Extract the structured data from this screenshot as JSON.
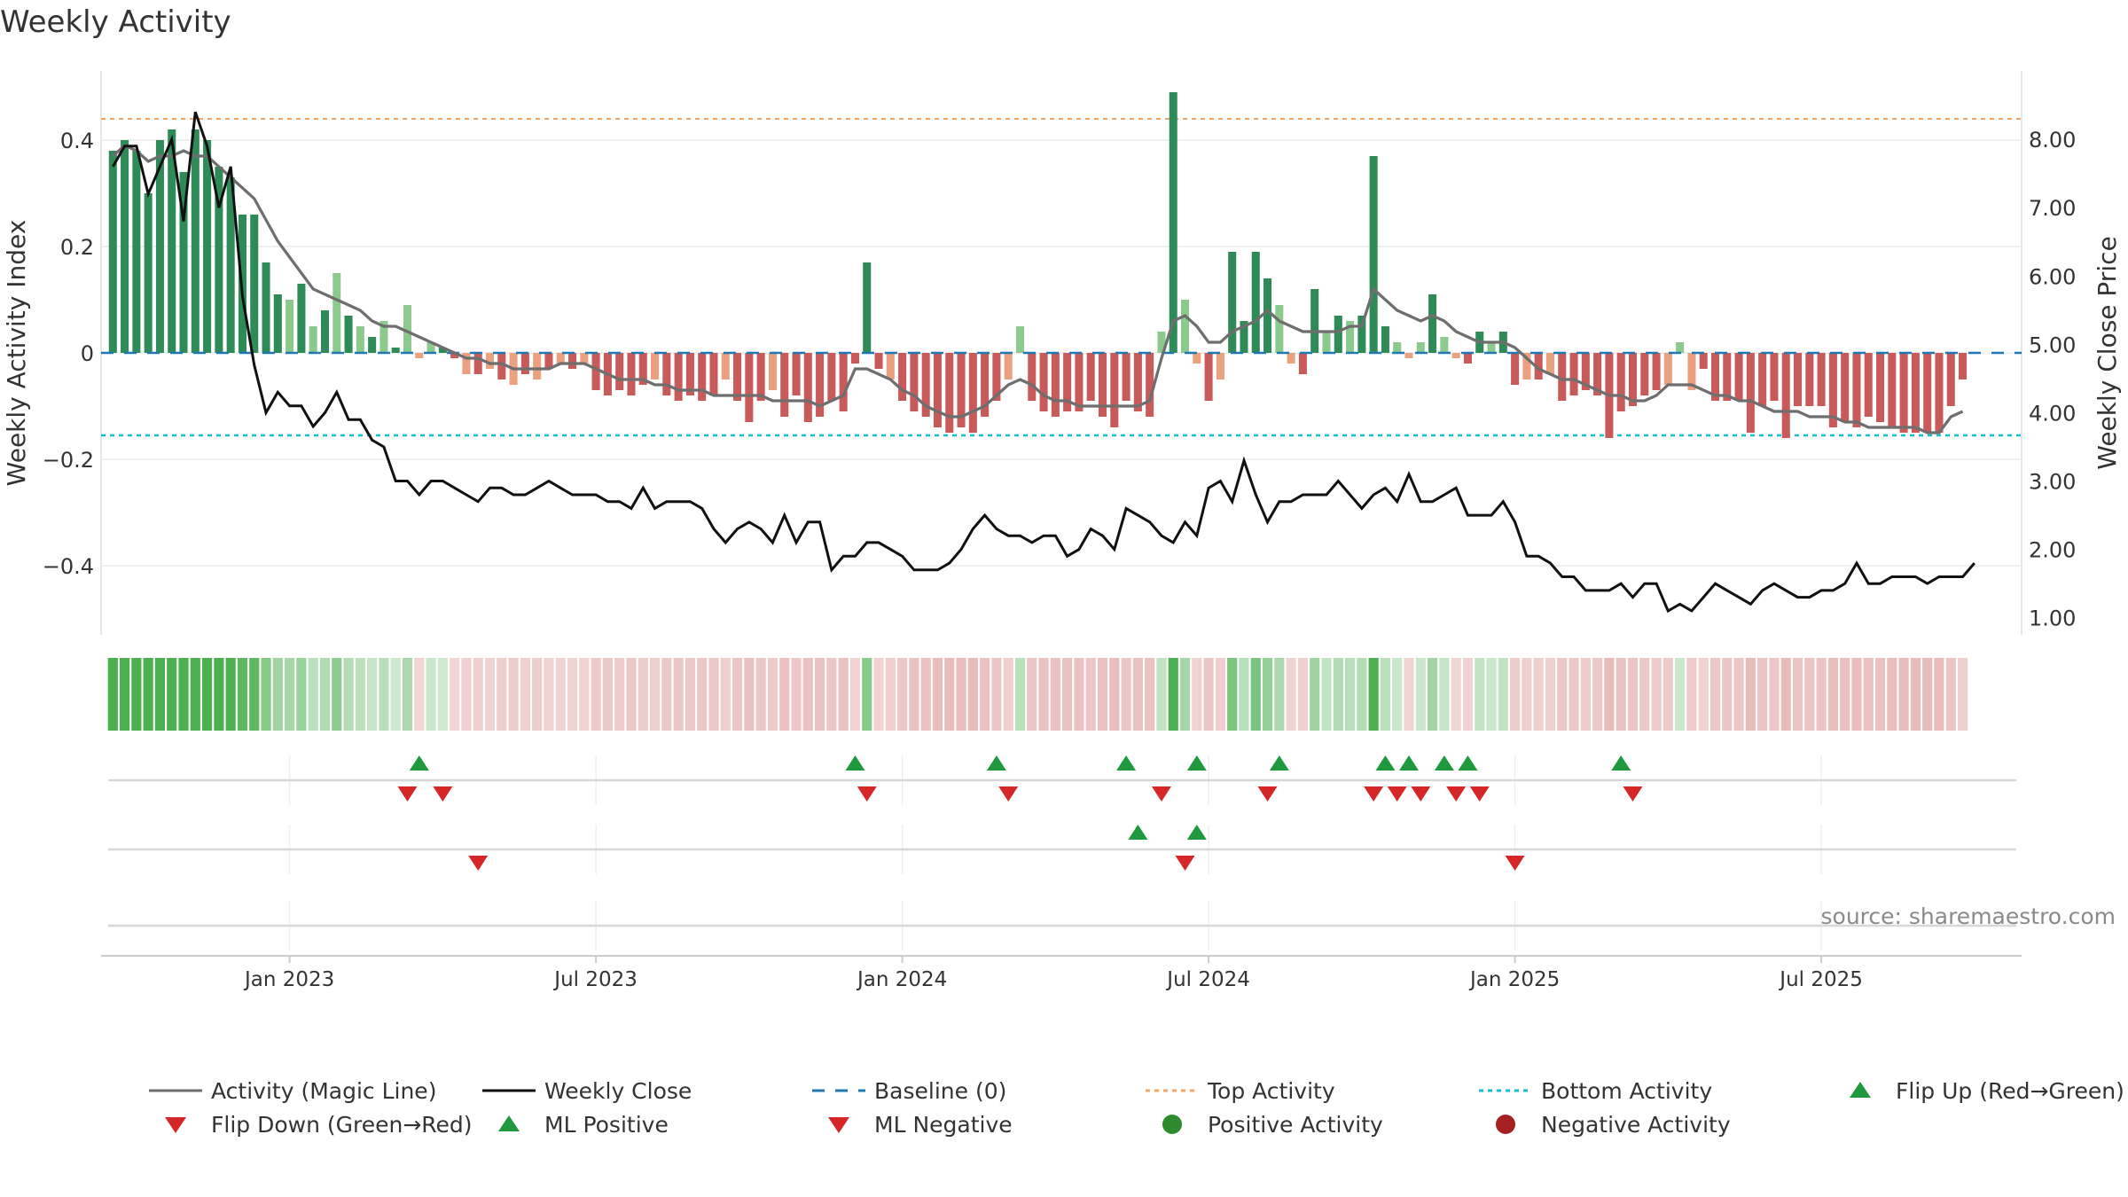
{
  "title": "Weekly Activity",
  "source": "source: sharemaestro.com",
  "colors": {
    "bar_pos_strong": "#2e8b57",
    "bar_pos_weak": "#8cc98c",
    "bar_neg_strong": "#c95a5a",
    "bar_neg_weak": "#eba07e",
    "magic_line": "#6e6e6e",
    "close_line": "#111111",
    "baseline": "#1f77b4",
    "top_line": "#f4a460",
    "bottom_line": "#17becf",
    "flip_up": "#1e9a3c",
    "flip_down": "#d62728",
    "strip_pos": "#4caf50",
    "strip_neg": "#d98a8a"
  },
  "chart_data": {
    "type": "bar",
    "title": "Weekly Activity",
    "ylabel_left": "Weekly Activity Index",
    "ylabel_right": "Weekly Close Price",
    "ylim_left": [
      -0.53,
      0.53
    ],
    "ylim_right": [
      0.75,
      9.0
    ],
    "left_ticks": [
      0.4,
      0.2,
      0,
      -0.2,
      -0.4
    ],
    "left_tick_labels": [
      "0.4",
      "0.2",
      "0",
      "−0.2",
      "−0.4"
    ],
    "right_ticks": [
      8,
      7,
      6,
      5,
      4,
      3,
      2,
      1
    ],
    "right_tick_labels": [
      "8.00",
      "7.00",
      "6.00",
      "5.00",
      "4.00",
      "3.00",
      "2.00",
      "1.00"
    ],
    "x_range_weeks": [
      -1,
      162
    ],
    "x_ticks": [
      {
        "label": "Jan 2023",
        "week": 15
      },
      {
        "label": "Jul 2023",
        "week": 41
      },
      {
        "label": "Jan 2024",
        "week": 67
      },
      {
        "label": "Jul 2024",
        "week": 93
      },
      {
        "label": "Jan 2025",
        "week": 119
      },
      {
        "label": "Jul 2025",
        "week": 145
      }
    ],
    "top_activity": 0.44,
    "bottom_activity": -0.155,
    "baseline": 0,
    "activity": [
      0.38,
      0.4,
      0.38,
      0.3,
      0.4,
      0.42,
      0.34,
      0.42,
      0.4,
      0.35,
      0.33,
      0.26,
      0.26,
      0.17,
      0.11,
      0.1,
      0.13,
      0.05,
      0.08,
      0.15,
      0.07,
      0.05,
      0.03,
      0.06,
      0.01,
      0.09,
      -0.01,
      0.02,
      0.01,
      -0.01,
      -0.04,
      -0.04,
      -0.03,
      -0.05,
      -0.06,
      -0.04,
      -0.05,
      -0.03,
      -0.02,
      -0.03,
      -0.02,
      -0.07,
      -0.08,
      -0.07,
      -0.08,
      -0.06,
      -0.05,
      -0.08,
      -0.09,
      -0.08,
      -0.09,
      -0.08,
      -0.05,
      -0.09,
      -0.13,
      -0.09,
      -0.07,
      -0.12,
      -0.08,
      -0.13,
      -0.12,
      -0.09,
      -0.11,
      -0.02,
      0.17,
      -0.03,
      -0.05,
      -0.09,
      -0.11,
      -0.12,
      -0.14,
      -0.15,
      -0.14,
      -0.15,
      -0.12,
      -0.09,
      -0.05,
      0.05,
      -0.09,
      -0.11,
      -0.12,
      -0.11,
      -0.11,
      -0.09,
      -0.12,
      -0.14,
      -0.09,
      -0.11,
      -0.12,
      0.04,
      0.49,
      0.1,
      -0.02,
      -0.09,
      -0.05,
      0.19,
      0.06,
      0.19,
      0.14,
      0.09,
      -0.02,
      -0.04,
      0.12,
      0.04,
      0.07,
      0.06,
      0.07,
      0.37,
      0.05,
      0.02,
      -0.01,
      0.02,
      0.11,
      0.03,
      -0.01,
      -0.02,
      0.04,
      0.02,
      0.04,
      -0.06,
      -0.05,
      -0.05,
      -0.04,
      -0.09,
      -0.08,
      -0.07,
      -0.08,
      -0.16,
      -0.11,
      -0.1,
      -0.08,
      -0.07,
      -0.06,
      0.02,
      -0.07,
      -0.03,
      -0.09,
      -0.09,
      -0.09,
      -0.15,
      -0.1,
      -0.09,
      -0.16,
      -0.1,
      -0.1,
      -0.1,
      -0.14,
      -0.13,
      -0.14,
      -0.12,
      -0.13,
      -0.14,
      -0.15,
      -0.15,
      -0.15,
      -0.15,
      -0.1,
      -0.05
    ],
    "magic_line": [
      0.37,
      0.39,
      0.38,
      0.36,
      0.37,
      0.37,
      0.38,
      0.37,
      0.37,
      0.35,
      0.33,
      0.31,
      0.29,
      0.25,
      0.21,
      0.18,
      0.15,
      0.12,
      0.11,
      0.1,
      0.09,
      0.08,
      0.06,
      0.05,
      0.05,
      0.04,
      0.03,
      0.02,
      0.01,
      0,
      -0.01,
      -0.01,
      -0.02,
      -0.02,
      -0.03,
      -0.03,
      -0.03,
      -0.03,
      -0.02,
      -0.02,
      -0.02,
      -0.03,
      -0.04,
      -0.05,
      -0.05,
      -0.05,
      -0.06,
      -0.06,
      -0.07,
      -0.07,
      -0.07,
      -0.08,
      -0.08,
      -0.08,
      -0.08,
      -0.08,
      -0.09,
      -0.09,
      -0.09,
      -0.09,
      -0.1,
      -0.09,
      -0.08,
      -0.03,
      -0.03,
      -0.04,
      -0.05,
      -0.07,
      -0.08,
      -0.1,
      -0.11,
      -0.12,
      -0.12,
      -0.11,
      -0.1,
      -0.08,
      -0.06,
      -0.05,
      -0.06,
      -0.08,
      -0.09,
      -0.09,
      -0.1,
      -0.1,
      -0.1,
      -0.1,
      -0.1,
      -0.1,
      -0.09,
      -0.01,
      0.06,
      0.07,
      0.05,
      0.02,
      0.02,
      0.04,
      0.05,
      0.06,
      0.08,
      0.06,
      0.05,
      0.04,
      0.04,
      0.04,
      0.04,
      0.05,
      0.05,
      0.12,
      0.1,
      0.08,
      0.07,
      0.06,
      0.07,
      0.06,
      0.04,
      0.03,
      0.02,
      0.02,
      0.02,
      0.01,
      -0.01,
      -0.03,
      -0.04,
      -0.05,
      -0.05,
      -0.06,
      -0.07,
      -0.08,
      -0.08,
      -0.09,
      -0.09,
      -0.08,
      -0.06,
      -0.06,
      -0.06,
      -0.07,
      -0.08,
      -0.08,
      -0.09,
      -0.09,
      -0.1,
      -0.11,
      -0.11,
      -0.11,
      -0.12,
      -0.12,
      -0.12,
      -0.13,
      -0.13,
      -0.14,
      -0.14,
      -0.14,
      -0.14,
      -0.14,
      -0.15,
      -0.15,
      -0.12,
      -0.11
    ],
    "close": [
      7.6,
      7.9,
      7.9,
      7.2,
      7.6,
      8.0,
      6.8,
      8.4,
      7.9,
      7.0,
      7.6,
      5.7,
      4.7,
      4.0,
      4.3,
      4.1,
      4.1,
      3.8,
      4.0,
      4.3,
      3.9,
      3.9,
      3.6,
      3.5,
      3.0,
      3.0,
      2.8,
      3.0,
      3.0,
      2.9,
      2.8,
      2.7,
      2.9,
      2.9,
      2.8,
      2.8,
      2.9,
      3.0,
      2.9,
      2.8,
      2.8,
      2.8,
      2.7,
      2.7,
      2.6,
      2.9,
      2.6,
      2.7,
      2.7,
      2.7,
      2.6,
      2.3,
      2.1,
      2.3,
      2.4,
      2.3,
      2.1,
      2.5,
      2.1,
      2.4,
      2.4,
      1.7,
      1.9,
      1.9,
      2.1,
      2.1,
      2.0,
      1.9,
      1.7,
      1.7,
      1.7,
      1.8,
      2.0,
      2.3,
      2.5,
      2.3,
      2.2,
      2.2,
      2.1,
      2.2,
      2.2,
      1.9,
      2.0,
      2.3,
      2.2,
      2.0,
      2.6,
      2.5,
      2.4,
      2.2,
      2.1,
      2.4,
      2.2,
      2.9,
      3.0,
      2.7,
      3.3,
      2.8,
      2.4,
      2.7,
      2.7,
      2.8,
      2.8,
      2.8,
      3.0,
      2.8,
      2.6,
      2.8,
      2.9,
      2.7,
      3.1,
      2.7,
      2.7,
      2.8,
      2.9,
      2.5,
      2.5,
      2.5,
      2.7,
      2.4,
      1.9,
      1.9,
      1.8,
      1.6,
      1.6,
      1.4,
      1.4,
      1.4,
      1.5,
      1.3,
      1.5,
      1.5,
      1.1,
      1.2,
      1.1,
      1.3,
      1.5,
      1.4,
      1.3,
      1.2,
      1.4,
      1.5,
      1.4,
      1.3,
      1.3,
      1.4,
      1.4,
      1.5,
      1.8,
      1.5,
      1.5,
      1.6,
      1.6,
      1.6,
      1.5,
      1.6,
      1.6,
      1.6,
      1.8
    ],
    "strip_rows": [
      {
        "up_weeks": [
          26,
          63,
          75,
          86,
          92,
          99,
          108,
          110,
          113,
          115,
          128
        ],
        "down_weeks": [
          25,
          28,
          64,
          76,
          89,
          98,
          107,
          109,
          111,
          114,
          116,
          129
        ]
      },
      {
        "up_weeks": [
          87,
          92
        ],
        "down_weeks": [
          31,
          91,
          119
        ]
      },
      {
        "up_weeks": [],
        "down_weeks": []
      }
    ],
    "legend": [
      "Activity (Magic Line)",
      "Weekly Close",
      "Baseline (0)",
      "Top Activity",
      "Bottom Activity",
      "Flip Up (Red→Green)",
      "Flip Down (Green→Red)",
      "ML Positive",
      "ML Negative",
      "Positive Activity",
      "Negative Activity"
    ]
  }
}
